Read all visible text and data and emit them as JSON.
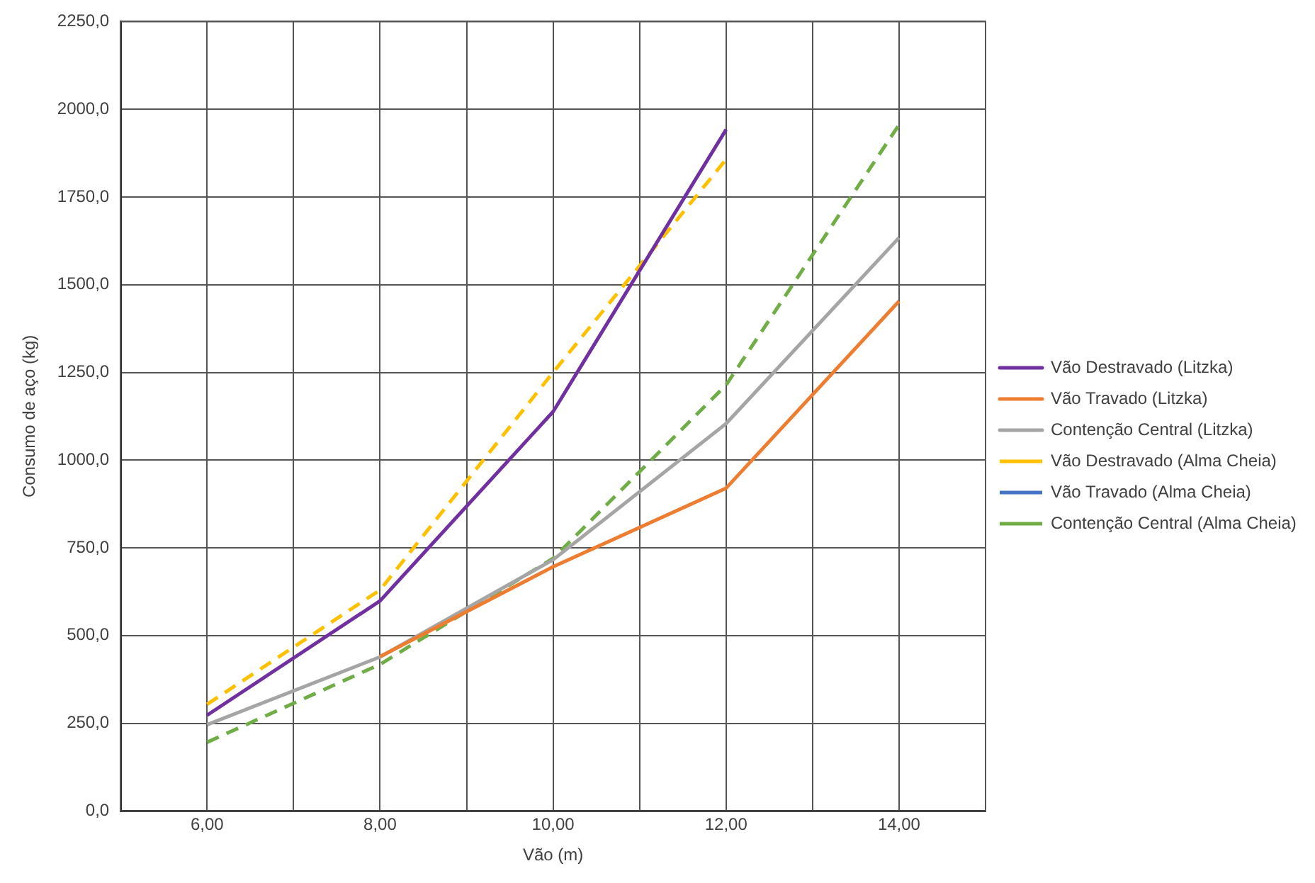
{
  "chart_data": {
    "type": "line",
    "xlabel": "Vão (m)",
    "ylabel": "Consumo de aço (kg)",
    "x": [
      6,
      8,
      10,
      12,
      14
    ],
    "xlim": [
      5,
      15
    ],
    "xticks": [
      {
        "value": 5,
        "label": null
      },
      {
        "value": 6,
        "label": "6,00"
      },
      {
        "value": 7,
        "label": null
      },
      {
        "value": 8,
        "label": "8,00"
      },
      {
        "value": 9,
        "label": null
      },
      {
        "value": 10,
        "label": "10,00"
      },
      {
        "value": 11,
        "label": null
      },
      {
        "value": 12,
        "label": "12,00"
      },
      {
        "value": 13,
        "label": null
      },
      {
        "value": 14,
        "label": "14,00"
      },
      {
        "value": 15,
        "label": null
      }
    ],
    "ylim": [
      0,
      2250
    ],
    "yticks": [
      {
        "value": 0,
        "label": "0,0"
      },
      {
        "value": 250,
        "label": "250,0"
      },
      {
        "value": 500,
        "label": "500,0"
      },
      {
        "value": 750,
        "label": "750,0"
      },
      {
        "value": 1000,
        "label": "1000,0"
      },
      {
        "value": 1250,
        "label": "1250,0"
      },
      {
        "value": 1500,
        "label": "1500,0"
      },
      {
        "value": 1750,
        "label": "1750,0"
      },
      {
        "value": 2000,
        "label": "2000,0"
      },
      {
        "value": 2250,
        "label": "2250,0"
      }
    ],
    "grid": true,
    "legend": "right",
    "marker": "none",
    "series": [
      {
        "name": "Vão Destravado (Litzka)",
        "color": "#7030a0",
        "line_style": "solid",
        "values": [
          273,
          599,
          1138,
          1942,
          null
        ]
      },
      {
        "name": "Vão Travado (Litzka)",
        "color": "#ed7d31",
        "line_style": "solid",
        "values": [
          null,
          440,
          696,
          920,
          1453
        ]
      },
      {
        "name": "Contenção Central (Litzka)",
        "color": "#a5a5a5",
        "line_style": "solid",
        "values": [
          246,
          439,
          716,
          1104,
          1634
        ]
      },
      {
        "name": "Vão Destravado (Alma Cheia)",
        "color": "#ffc000",
        "line_style": "dashed",
        "values": [
          304,
          630,
          1250,
          1857,
          null
        ]
      },
      {
        "name": "Vão Travado (Alma Cheia)",
        "color": "#4472c4",
        "line_style": "dashed",
        "values": [
          null,
          null,
          null,
          null,
          null
        ]
      },
      {
        "name": "Contenção Central (Alma Cheia)",
        "color": "#70ad47",
        "line_style": "dashed",
        "values": [
          196,
          418,
          720,
          1214,
          1956
        ]
      }
    ]
  }
}
